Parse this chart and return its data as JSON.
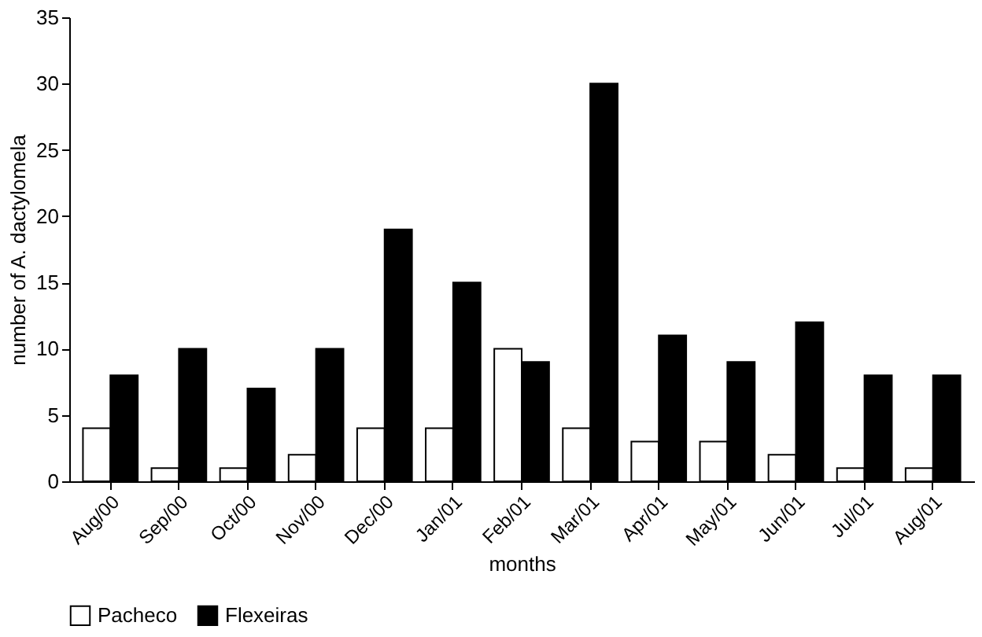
{
  "chart_data": {
    "type": "bar",
    "xlabel": "months",
    "ylabel": "number of A. dactylomela",
    "categories": [
      "Aug/00",
      "Sep/00",
      "Oct/00",
      "Nov/00",
      "Dec/00",
      "Jan/01",
      "Feb/01",
      "Mar/01",
      "Apr/01",
      "May/01",
      "Jun/01",
      "Jul/01",
      "Aug/01"
    ],
    "series": [
      {
        "name": "Pacheco",
        "color": "#ffffff",
        "values": [
          4,
          1,
          1,
          2,
          4,
          4,
          10,
          4,
          3,
          3,
          2,
          1,
          1
        ]
      },
      {
        "name": "Flexeiras",
        "color": "#000000",
        "values": [
          8,
          10,
          7,
          10,
          19,
          15,
          9,
          30,
          11,
          9,
          12,
          8,
          8
        ]
      }
    ],
    "ylim": [
      0,
      35
    ],
    "yticks": [
      0,
      5,
      10,
      15,
      20,
      25,
      30,
      35
    ],
    "grid": false,
    "legend": "bottom"
  }
}
